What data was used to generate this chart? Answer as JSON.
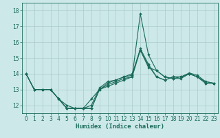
{
  "title": "",
  "xlabel": "Humidex (Indice chaleur)",
  "bg_color": "#cce8e8",
  "grid_color": "#aacccc",
  "line_color": "#1a6b5a",
  "xlim": [
    -0.5,
    23.5
  ],
  "ylim": [
    11.5,
    18.5
  ],
  "yticks": [
    12,
    13,
    14,
    15,
    16,
    17,
    18
  ],
  "xticks": [
    0,
    1,
    2,
    3,
    4,
    5,
    6,
    7,
    8,
    9,
    10,
    11,
    12,
    13,
    14,
    15,
    16,
    17,
    18,
    19,
    20,
    21,
    22,
    23
  ],
  "lines": [
    [
      14.0,
      13.0,
      13.0,
      13.0,
      12.4,
      11.8,
      11.8,
      11.8,
      12.4,
      13.0,
      13.4,
      13.6,
      13.8,
      13.9,
      15.6,
      14.6,
      13.8,
      13.6,
      13.8,
      13.8,
      14.0,
      13.8,
      13.4,
      13.4
    ],
    [
      14.0,
      13.0,
      13.0,
      13.0,
      12.4,
      11.8,
      11.8,
      11.8,
      11.8,
      13.0,
      13.3,
      13.5,
      13.7,
      13.8,
      17.8,
      15.2,
      14.2,
      13.8,
      13.7,
      13.8,
      14.05,
      13.9,
      13.5,
      13.4
    ],
    [
      14.0,
      13.0,
      13.0,
      13.0,
      12.4,
      12.0,
      11.8,
      11.8,
      12.0,
      13.1,
      13.5,
      13.6,
      13.8,
      14.0,
      15.5,
      14.5,
      13.8,
      13.6,
      13.8,
      13.8,
      14.0,
      13.8,
      13.4,
      13.4
    ],
    [
      14.0,
      13.0,
      13.0,
      13.0,
      12.4,
      11.8,
      11.8,
      11.8,
      11.8,
      13.0,
      13.2,
      13.4,
      13.6,
      13.8,
      15.5,
      14.4,
      14.2,
      13.8,
      13.7,
      13.7,
      14.0,
      13.8,
      13.5,
      13.4
    ]
  ],
  "tick_fontsize": 5.5,
  "xlabel_fontsize": 6.5
}
